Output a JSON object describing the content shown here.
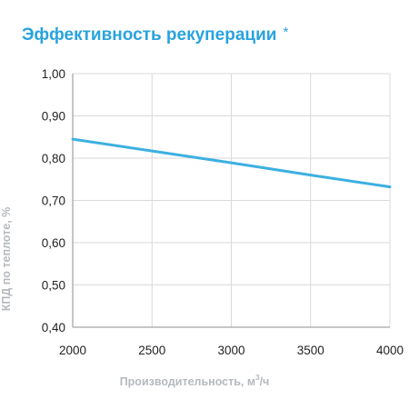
{
  "chart_data": {
    "type": "line",
    "title": "Эффективность рекуперации",
    "title_mark": "*",
    "xlabel": {
      "prefix": "Производительность, м",
      "superscript": "3",
      "suffix": "/ч"
    },
    "ylabel": "КПД по теплоте, %",
    "xlim": [
      2000,
      4000
    ],
    "ylim": [
      0.4,
      1.0
    ],
    "x_ticks": [
      2000,
      2500,
      3000,
      3500,
      4000
    ],
    "x_tick_labels": [
      "2000",
      "2500",
      "3000",
      "3500",
      "4000"
    ],
    "y_ticks": [
      0.4,
      0.5,
      0.6,
      0.7,
      0.8,
      0.9,
      1.0
    ],
    "y_tick_labels": [
      "0,40",
      "0,50",
      "0,60",
      "0,70",
      "0,80",
      "0,90",
      "1,00"
    ],
    "grid": true,
    "series": [
      {
        "color": "#3cb0e0",
        "x": [
          2000,
          2500,
          3000,
          3500,
          4000
        ],
        "y": [
          0.845,
          0.817,
          0.789,
          0.76,
          0.732
        ]
      }
    ]
  }
}
